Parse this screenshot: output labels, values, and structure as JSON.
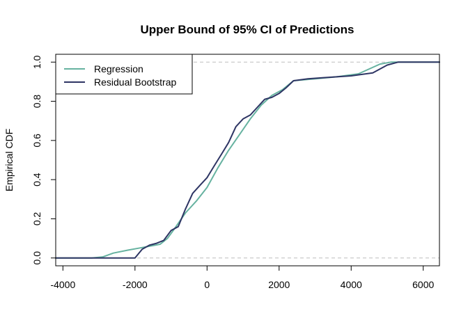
{
  "chart_data": {
    "type": "line",
    "title": "Upper Bound of 95% CI of Predictions",
    "xlabel": "",
    "ylabel": "Empirical CDF",
    "xlim": [
      -4200,
      6450
    ],
    "ylim": [
      -0.04,
      1.04
    ],
    "x_ticks": [
      -4000,
      -2000,
      0,
      2000,
      4000,
      6000
    ],
    "x_tick_labels": [
      "-4000",
      "-2000",
      "0",
      "2000",
      "4000",
      "6000"
    ],
    "y_ticks": [
      0,
      0.2,
      0.4,
      0.6,
      0.8,
      1.0
    ],
    "y_tick_labels": [
      "0.0",
      "0.2",
      "0.4",
      "0.6",
      "0.8",
      "1.0"
    ],
    "reference_lines": [
      0,
      1
    ],
    "grid": false,
    "legend": {
      "placement": "top-left"
    },
    "series": [
      {
        "name": "Regression",
        "color": "#66b2a0",
        "x": [
          -4200,
          -3200,
          -2900,
          -2600,
          -2200,
          -1900,
          -1600,
          -1300,
          -1100,
          -900,
          -600,
          -300,
          0,
          300,
          600,
          900,
          1200,
          1500,
          1800,
          2100,
          2400,
          3000,
          3600,
          4200,
          4800,
          5100,
          5400,
          6450
        ],
        "y": [
          0,
          0,
          0.005,
          0.025,
          0.04,
          0.05,
          0.06,
          0.07,
          0.1,
          0.15,
          0.23,
          0.29,
          0.36,
          0.46,
          0.55,
          0.63,
          0.71,
          0.78,
          0.83,
          0.86,
          0.905,
          0.915,
          0.925,
          0.94,
          0.99,
          1.0,
          1.0,
          1.0
        ]
      },
      {
        "name": "Residual Bootstrap",
        "color": "#2e3564",
        "x": [
          -4200,
          -2000,
          -1800,
          -1600,
          -1400,
          -1200,
          -1000,
          -800,
          -600,
          -400,
          -200,
          0,
          200,
          400,
          600,
          800,
          1000,
          1200,
          1400,
          1600,
          1800,
          2000,
          2200,
          2400,
          2800,
          3200,
          3600,
          4000,
          4600,
          5000,
          5300,
          6450
        ],
        "y": [
          0,
          0,
          0.045,
          0.065,
          0.075,
          0.09,
          0.14,
          0.16,
          0.25,
          0.33,
          0.37,
          0.41,
          0.47,
          0.53,
          0.59,
          0.67,
          0.71,
          0.73,
          0.77,
          0.81,
          0.82,
          0.84,
          0.87,
          0.905,
          0.915,
          0.92,
          0.925,
          0.93,
          0.945,
          0.985,
          1.0,
          1.0
        ]
      }
    ]
  }
}
